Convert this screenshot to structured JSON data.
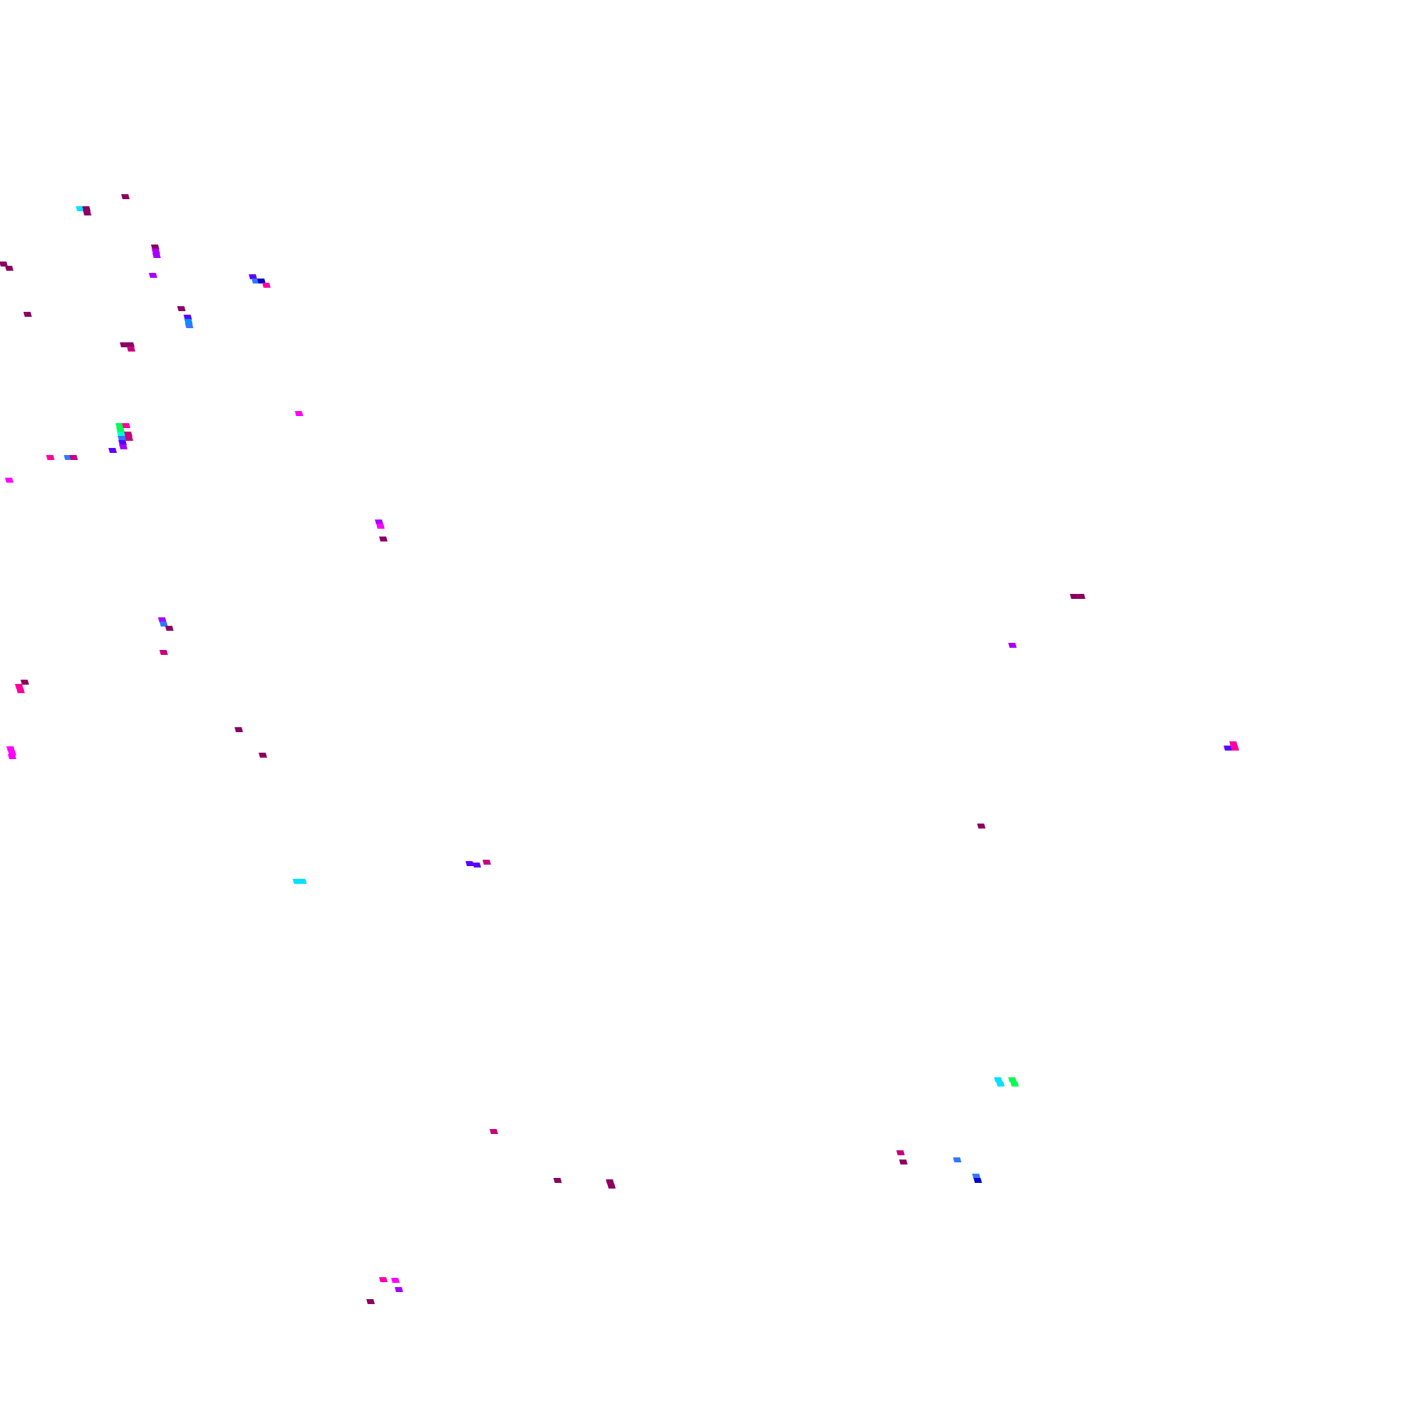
{
  "palette": {
    "maroon": "#8b0060",
    "crimson": "#c8007e",
    "pink": "#ff00a0",
    "magenta": "#ff00ff",
    "violet": "#a800ff",
    "indigo": "#5a00ff",
    "navy": "#0000c8",
    "blue": "#3078ff",
    "azure": "#0090ff",
    "cyan": "#00e0ff",
    "aqua": "#00ffd0",
    "green": "#00ff50"
  }
}
